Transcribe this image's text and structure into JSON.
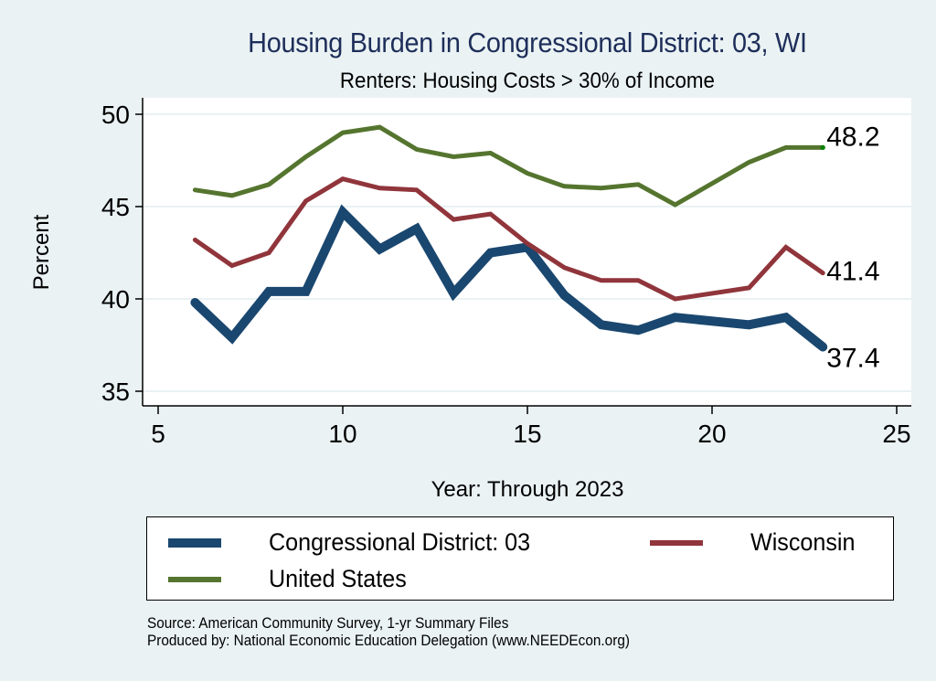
{
  "chart_data": {
    "type": "line",
    "title": "Housing Burden in Congressional District:  03, WI",
    "subtitle": "Renters: Housing Costs > 30% of Income",
    "xlabel": "Year: Through 2023",
    "ylabel": "Percent",
    "xlim": [
      5,
      25
    ],
    "ylim": [
      35,
      50
    ],
    "xticks": [
      5,
      10,
      15,
      20,
      25
    ],
    "yticks": [
      35,
      40,
      45,
      50
    ],
    "grid": "horizontal",
    "legend_position": "bottom",
    "series": [
      {
        "name": "Congressional District:  03",
        "color": "#1A476F",
        "weight": "thick",
        "x": [
          6,
          7,
          8,
          9,
          10,
          11,
          12,
          13,
          14,
          15,
          16,
          17,
          18,
          19,
          21,
          22,
          23
        ],
        "values": [
          39.8,
          37.9,
          40.4,
          40.4,
          44.7,
          42.7,
          43.8,
          40.3,
          42.5,
          42.8,
          40.2,
          38.6,
          38.3,
          39.0,
          38.6,
          39.0,
          37.4
        ],
        "end_label": "37.4"
      },
      {
        "name": "Wisconsin",
        "color": "#90353B",
        "weight": "medium",
        "x": [
          6,
          7,
          8,
          9,
          10,
          11,
          12,
          13,
          14,
          15,
          16,
          17,
          18,
          19,
          21,
          22,
          23
        ],
        "values": [
          43.2,
          41.8,
          42.5,
          45.3,
          46.5,
          46.0,
          45.9,
          44.3,
          44.6,
          43.0,
          41.7,
          41.0,
          41.0,
          40.0,
          40.6,
          42.8,
          41.4
        ],
        "end_label": "41.4"
      },
      {
        "name": "United States",
        "color": "#55752F",
        "weight": "medium",
        "x": [
          6,
          7,
          8,
          9,
          10,
          11,
          12,
          13,
          14,
          15,
          16,
          17,
          18,
          19,
          21,
          22,
          23
        ],
        "values": [
          45.9,
          45.6,
          46.2,
          47.7,
          49.0,
          49.3,
          48.1,
          47.7,
          47.9,
          46.8,
          46.1,
          46.0,
          46.2,
          45.1,
          47.4,
          48.2,
          48.2
        ],
        "end_label": "48.2"
      }
    ]
  },
  "legend": {
    "items": [
      {
        "label": "Congressional District:  03",
        "color": "#1A476F"
      },
      {
        "label": "Wisconsin",
        "color": "#90353B"
      },
      {
        "label": "United States",
        "color": "#55752F"
      }
    ]
  },
  "source": {
    "line1": "Source: American Community Survey, 1-yr Summary Files",
    "line2": "Produced by: National Economic Education Delegation (www.NEEDEcon.org)"
  },
  "theme": {
    "background": "#EAF2F3",
    "plot_background": "#FFFFFF",
    "title_color": "#1E2E5A",
    "gridline_color": "#EAF2F3",
    "end_marker_color": "#008000"
  }
}
